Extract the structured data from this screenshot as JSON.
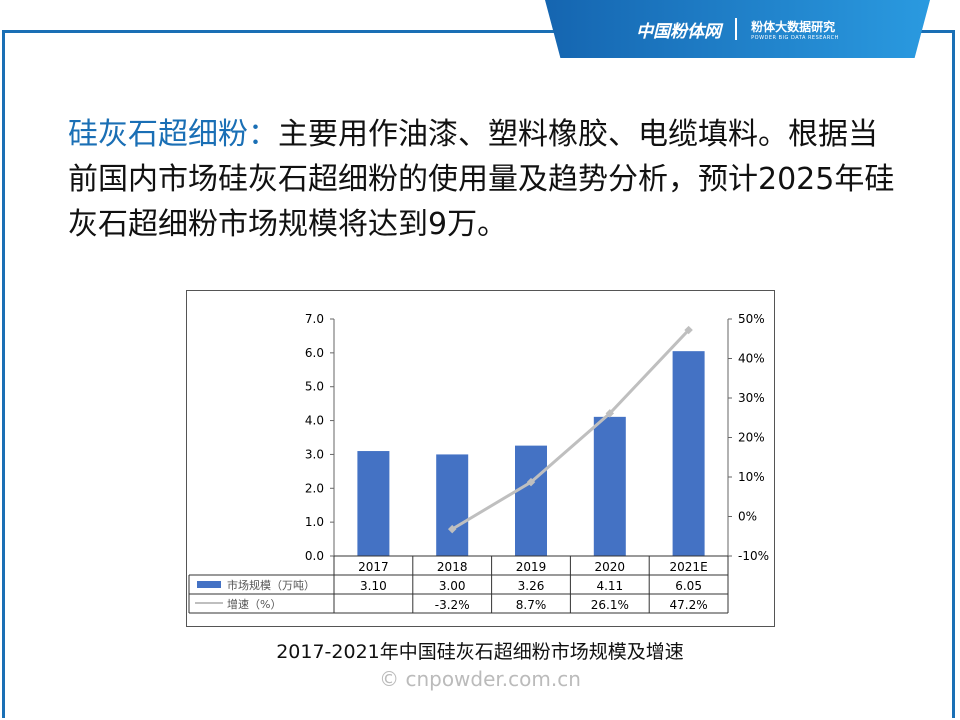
{
  "header": {
    "logo_left": "中国粉体网",
    "logo_right": "粉体大数据研究",
    "logo_right_sub": "POWDER BIG DATA RESEARCH"
  },
  "body": {
    "highlight": "硅灰石超细粉：",
    "text": "主要用作油漆、塑料橡胶、电缆填料。根据当前国内市场硅灰石超细粉的使用量及趋势分析，预计2025年硅灰石超细粉市场规模将达到9万。"
  },
  "caption": "2017-2021年中国硅灰石超细粉市场规模及增速",
  "watermark": "© cnpowder.com.cn",
  "colors": {
    "bar": "#4472c4",
    "line": "#bfbfbf",
    "brand": "#1a6fb5"
  },
  "chart_data": {
    "type": "bar+line",
    "categories": [
      "2017",
      "2018",
      "2019",
      "2020",
      "2021E"
    ],
    "series": [
      {
        "name": "市场规模（万吨）",
        "type": "bar",
        "axis": "left",
        "values": [
          3.1,
          3.0,
          3.26,
          4.11,
          6.05
        ],
        "labels": [
          "3.10",
          "3.00",
          "3.26",
          "4.11",
          "6.05"
        ]
      },
      {
        "name": "增速（%）",
        "type": "line",
        "axis": "right",
        "values": [
          null,
          -3.2,
          8.7,
          26.1,
          47.2
        ],
        "labels": [
          "",
          "-3.2%",
          "8.7%",
          "26.1%",
          "47.2%"
        ]
      }
    ],
    "left_axis": {
      "ylim": [
        0,
        7
      ],
      "ticks": [
        "0.0",
        "1.0",
        "2.0",
        "3.0",
        "4.0",
        "5.0",
        "6.0",
        "7.0"
      ]
    },
    "right_axis": {
      "ylim": [
        -10,
        50
      ],
      "ticks": [
        "-10%",
        "0%",
        "10%",
        "20%",
        "30%",
        "40%",
        "50%"
      ]
    },
    "legend": "data-table"
  }
}
